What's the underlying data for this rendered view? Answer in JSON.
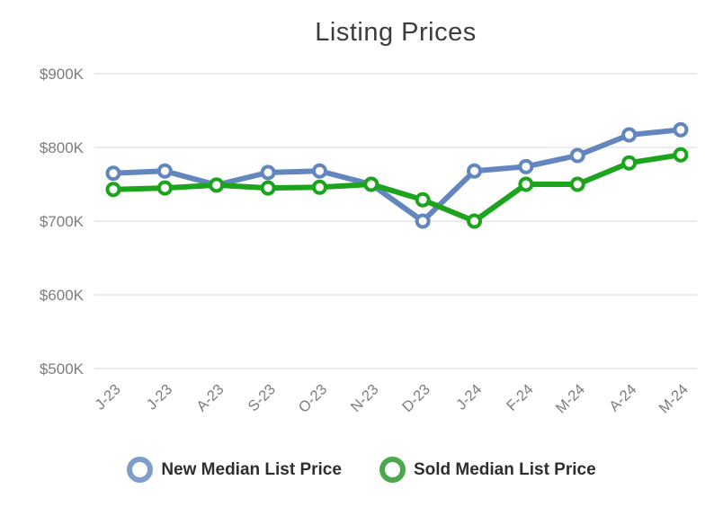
{
  "title": "Listing Prices",
  "colors": {
    "new_series": "#6286bd",
    "sold_series": "#1da41d",
    "new_legend_ring": "#7f9dcb",
    "sold_legend_ring": "#4ba84b",
    "marker_fill": "#ffffff",
    "gridline": "#e6e6e6",
    "axis_text": "#7d7d7d",
    "title_text": "#3d3d3d",
    "legend_text": "#2e2e2e"
  },
  "chart_data": {
    "type": "line",
    "title": "Listing Prices",
    "categories": [
      "J-23",
      "J-23",
      "A-23",
      "S-23",
      "O-23",
      "N-23",
      "D-23",
      "J-24",
      "F-24",
      "M-24",
      "A-24",
      "M-24"
    ],
    "series": [
      {
        "key": "new",
        "name": "New Median List Price",
        "color": "#6286bd",
        "values": [
          765,
          768,
          749,
          766,
          768,
          750,
          700,
          768,
          774,
          789,
          817,
          824
        ]
      },
      {
        "key": "sold",
        "name": "Sold Median List Price",
        "color": "#1da41d",
        "values": [
          743,
          745,
          749,
          745,
          746,
          750,
          729,
          700,
          750,
          750,
          779,
          790
        ]
      }
    ],
    "values_unit": "thousand USD",
    "ytick_labels": [
      "$900K",
      "$800K",
      "$700K",
      "$600K",
      "$500K"
    ],
    "ytick_values": [
      900,
      800,
      700,
      600,
      500
    ],
    "ylim": [
      500,
      900
    ],
    "xlabel": "",
    "ylabel": "",
    "grid": true,
    "legend_position": "bottom",
    "marker_style": "open-circle"
  }
}
